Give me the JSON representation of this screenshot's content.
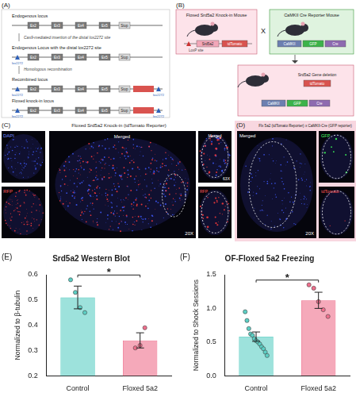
{
  "panels": {
    "A": {
      "label": "(A)",
      "exons": [
        "Ex2",
        "Ex3",
        "Ex4",
        "Ex5"
      ],
      "stop": "Stop",
      "site": "lox2272",
      "steps": [
        "Endogenous locus",
        "Cas9-mediated insertion of the distal lox2272 site",
        "Endogenous Locus with the distal lox2272 site",
        "Homologous recombination",
        "Recombined locus",
        "Floxed knock-in locus"
      ]
    },
    "B": {
      "label": "(B)",
      "mouse1": "Floxed Srd5a2 Knock-in Mouse",
      "mouse2": "CaMKII Cre Reporter Mouse",
      "loxp": "LoxP site",
      "gene": "Srd5a2",
      "reporter": "tdTomato",
      "promoter": "CaMKII",
      "gfp": "GFP",
      "cre": "Cre",
      "deletion": "Srd5a2 Gene deletion",
      "cross": "X"
    },
    "C": {
      "label": "(C)",
      "title": "Floxed Srd5a2 Knock-in (tdTomato Reporter)",
      "channels": [
        "DAPI",
        "RFP"
      ],
      "merged": "Merged",
      "inset_merged": "Merged",
      "inset_mag": "63X",
      "mag": "20X"
    },
    "D": {
      "label": "(D)",
      "title": "Flx 5a2 (tdTomato Reporter) x CaMKII-Cre (GFP reporter)",
      "merged": "Merged",
      "channels": [
        "GFP",
        "tdTomato"
      ],
      "mag": "20X"
    }
  },
  "chart_data": [
    {
      "type": "bar",
      "panel_label": "(E)",
      "title": "Srd5a2 Western Blot",
      "y_label": "Normalized to β-tubulin",
      "categories": [
        "Control",
        "Floxed 5a2"
      ],
      "values": [
        0.51,
        0.34
      ],
      "errors": [
        0.045,
        0.03
      ],
      "points": [
        [
          0.58,
          0.53,
          0.47,
          0.45
        ],
        [
          0.31,
          0.32,
          0.39
        ]
      ],
      "colors": [
        "#5ccfc4",
        "#ee6f8c"
      ],
      "ylim": [
        0.2,
        0.6
      ],
      "yticks": [
        0.2,
        0.3,
        0.4,
        0.5,
        0.6
      ],
      "grid": false,
      "significance": "*"
    },
    {
      "type": "bar",
      "panel_label": "(F)",
      "title": "OF-Floxed 5a2 Freezing",
      "y_label": "Normalized to Shock Sessions",
      "categories": [
        "Control",
        "Floxed 5a2"
      ],
      "values": [
        0.58,
        1.12
      ],
      "errors": [
        0.07,
        0.12
      ],
      "points": [
        [
          0.95,
          0.82,
          0.7,
          0.62,
          0.6,
          0.55,
          0.52,
          0.5,
          0.47,
          0.43,
          0.4,
          0.35,
          0.3
        ],
        [
          1.35,
          1.3,
          1.1,
          0.98,
          0.88
        ]
      ],
      "colors": [
        "#5ccfc4",
        "#ee6f8c"
      ],
      "ylim": [
        0,
        1.5
      ],
      "yticks": [
        {
          "value": 0,
          "label": "0.0"
        },
        0.5,
        {
          "value": 1,
          "label": "1.0"
        },
        1.5
      ],
      "grid": false,
      "significance": "*"
    }
  ]
}
